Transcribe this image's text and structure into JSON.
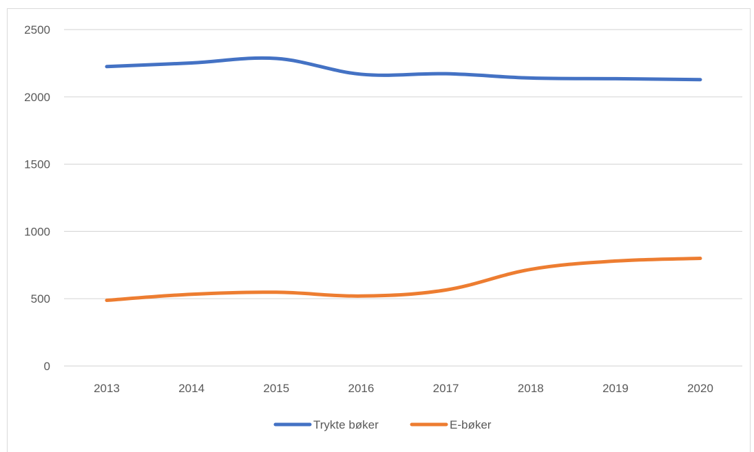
{
  "chart_data": {
    "type": "line",
    "title": "",
    "xlabel": "",
    "ylabel": "",
    "categories": [
      "2013",
      "2014",
      "2015",
      "2016",
      "2017",
      "2018",
      "2019",
      "2020"
    ],
    "ylim": [
      0,
      2500
    ],
    "yticks": [
      0,
      500,
      1000,
      1500,
      2000,
      2500
    ],
    "grid": true,
    "legend_position": "bottom",
    "series": [
      {
        "name": "Trykte bøker",
        "color": "#4472c4",
        "values": [
          2225,
          2252,
          2285,
          2168,
          2172,
          2140,
          2135,
          2128
        ]
      },
      {
        "name": "E-bøker",
        "color": "#ed7d31",
        "values": [
          488,
          533,
          548,
          520,
          565,
          718,
          780,
          800
        ]
      }
    ]
  }
}
